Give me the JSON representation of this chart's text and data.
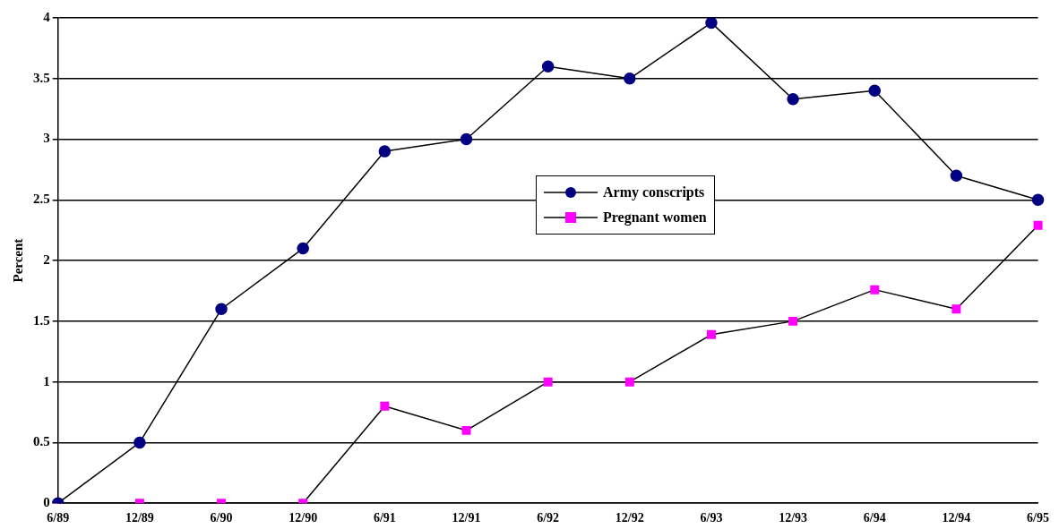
{
  "chart_data": {
    "type": "line",
    "ylabel": "Percent",
    "categories": [
      "6/89",
      "12/89",
      "6/90",
      "12/90",
      "6/91",
      "12/91",
      "6/92",
      "12/92",
      "6/93",
      "12/93",
      "6/94",
      "12/94",
      "6/95"
    ],
    "series": [
      {
        "name": "Army conscripts",
        "color": "#000080",
        "marker": "circle",
        "values": [
          0,
          0.5,
          1.6,
          2.1,
          2.9,
          3.0,
          3.6,
          3.5,
          3.96,
          3.33,
          3.4,
          2.7,
          2.5
        ]
      },
      {
        "name": "Pregnant women",
        "color": "#ff00ff",
        "marker": "square",
        "values": [
          0,
          0,
          0,
          0,
          0.8,
          0.6,
          1.0,
          1.0,
          1.39,
          1.5,
          1.76,
          1.6,
          2.29
        ]
      }
    ],
    "ylim": [
      0,
      4
    ],
    "yticks": [
      0,
      0.5,
      1,
      1.5,
      2,
      2.5,
      3,
      3.5,
      4
    ],
    "grid": "y",
    "legend": "center"
  }
}
